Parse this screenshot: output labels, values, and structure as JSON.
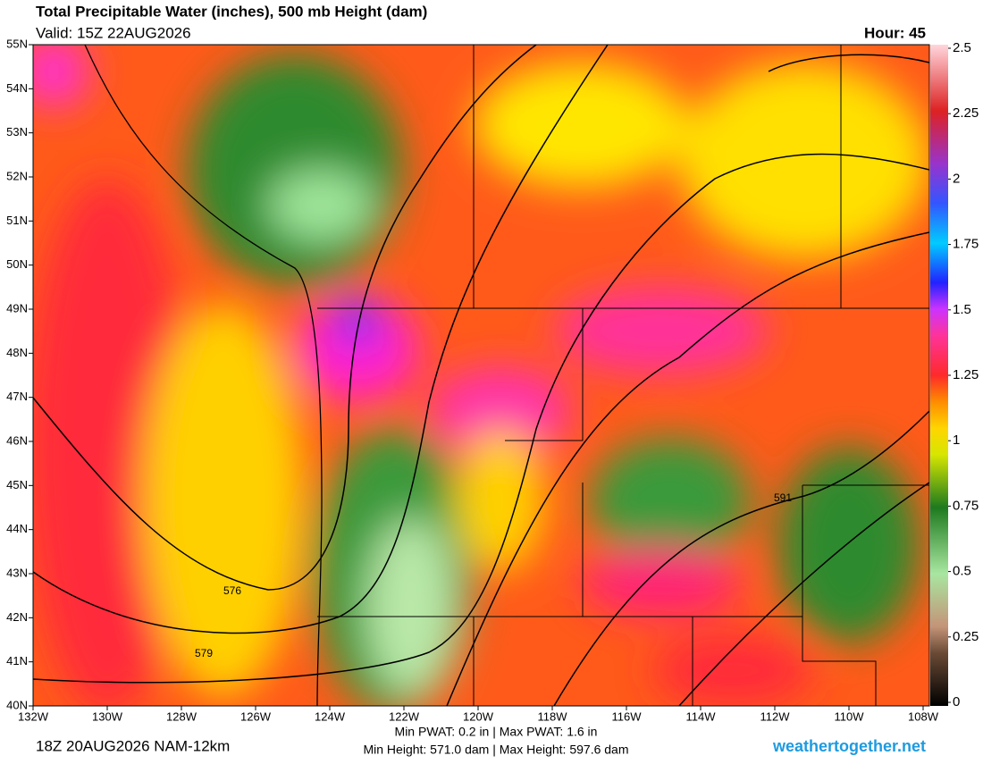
{
  "header": {
    "title": "Total Precipitable Water (inches), 500 mb Height (dam)",
    "valid": "Valid: 15Z 22AUG2026",
    "hour": "Hour: 45"
  },
  "map": {
    "lat_labels": [
      "55N",
      "54N",
      "53N",
      "52N",
      "51N",
      "50N",
      "49N",
      "48N",
      "47N",
      "46N",
      "45N",
      "44N",
      "43N",
      "42N",
      "41N",
      "40N"
    ],
    "lon_labels": [
      "132W",
      "130W",
      "128W",
      "126W",
      "124W",
      "122W",
      "120W",
      "118W",
      "116W",
      "114W",
      "112W",
      "110W",
      "108W"
    ],
    "contour_labels": [
      "576",
      "579",
      "591"
    ]
  },
  "colorbar": {
    "range": [
      0,
      2.5
    ],
    "ticks": [
      0,
      0.25,
      0.5,
      0.75,
      1,
      1.25,
      1.5,
      1.75,
      2,
      2.25,
      2.5
    ]
  },
  "footer": {
    "run": "18Z 20AUG2026 NAM-12km",
    "pwat": "Min PWAT:   0.2 in | Max PWAT:   1.6 in",
    "height": "Min Height: 571.0 dam | Max Height: 597.6 dam",
    "site": "weathertogether.net"
  }
}
